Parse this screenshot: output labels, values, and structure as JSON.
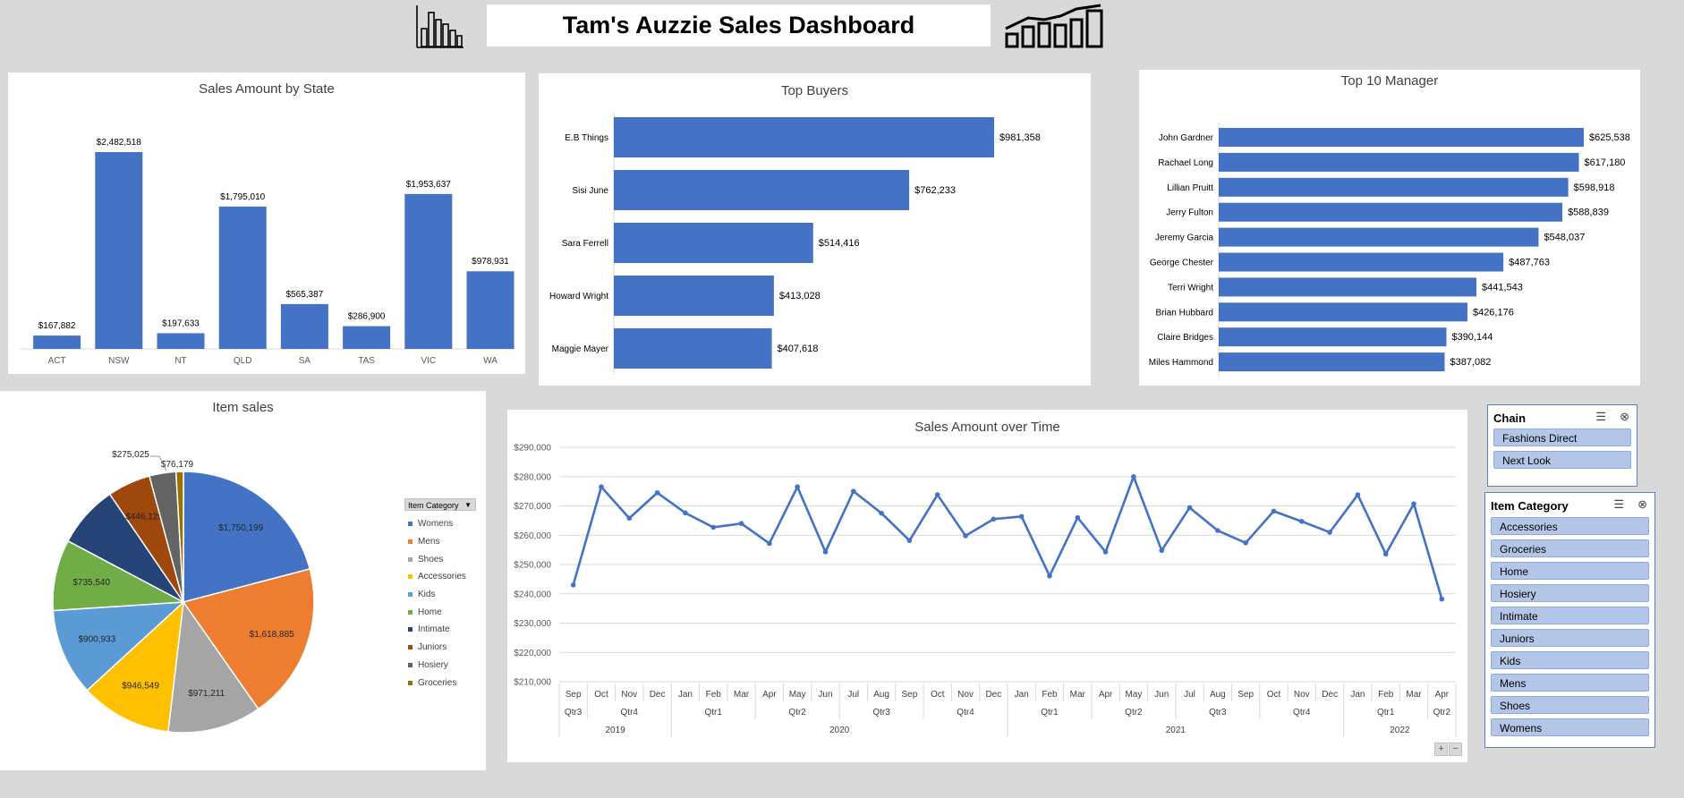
{
  "header": {
    "title": "Tam's Auzzie Sales Dashboard"
  },
  "chart_data": [
    {
      "id": "state",
      "type": "bar",
      "title": "Sales Amount by State",
      "categories": [
        "ACT",
        "NSW",
        "NT",
        "QLD",
        "SA",
        "TAS",
        "VIC",
        "WA"
      ],
      "values": [
        167882,
        2482518,
        197633,
        1795010,
        565387,
        286900,
        1953637,
        978931
      ],
      "labels": [
        "$167,882",
        "$2,482,518",
        "$197,633",
        "$1,795,010",
        "$565,387",
        "$286,900",
        "$1,953,637",
        "$978,931"
      ],
      "color": "#4472c4"
    },
    {
      "id": "buyers",
      "type": "bar",
      "orientation": "horizontal",
      "title": "Top Buyers",
      "categories": [
        "E.B Things",
        "Sisi June",
        "Sara Ferrell",
        "Howard Wright",
        "Maggie Mayer"
      ],
      "values": [
        981358,
        762233,
        514416,
        413028,
        407618
      ],
      "labels": [
        "$981,358",
        "$762,233",
        "$514,416",
        "$413,028",
        "$407,618"
      ],
      "color": "#4472c4"
    },
    {
      "id": "managers",
      "type": "bar",
      "orientation": "horizontal",
      "title": "Top 10 Manager",
      "categories": [
        "John Gardner",
        "Rachael Long",
        "Lillian Pruitt",
        "Jerry Fulton",
        "Jeremy Garcia",
        "George Chester",
        "Terri Wright",
        "Brian Hubbard",
        "Claire Bridges",
        "Miles Hammond"
      ],
      "values": [
        625538,
        617180,
        598918,
        588839,
        548037,
        487763,
        441543,
        426176,
        390144,
        387082
      ],
      "labels": [
        "$625,538",
        "$617,180",
        "$598,918",
        "$588,839",
        "$548,037",
        "$487,763",
        "$441,543",
        "$426,176",
        "$390,144",
        "$387,082"
      ],
      "color": "#4472c4"
    },
    {
      "id": "items",
      "type": "pie",
      "title": "Item sales",
      "legend_title": "Item Category",
      "legend_position": "right",
      "categories": [
        "Womens",
        "Mens",
        "Shoes",
        "Accessories",
        "Kids",
        "Home",
        "Intimate",
        "Juniors",
        "Hosiery",
        "Groceries"
      ],
      "values": [
        1750199,
        1618885,
        971211,
        946549,
        900933,
        735540,
        646000,
        446125,
        275025,
        76179
      ],
      "labels": [
        "$1,750,199",
        "$1,618,885",
        "$971,211",
        "$946,549",
        "$900,933",
        "$735,540",
        "",
        "$446,125",
        "$275,025",
        "$76,179"
      ],
      "colors": [
        "#4472c4",
        "#ed7d31",
        "#a5a5a5",
        "#ffc000",
        "#5b9bd5",
        "#70ad47",
        "#264478",
        "#9e480e",
        "#636363",
        "#997300"
      ]
    },
    {
      "id": "time",
      "type": "line",
      "title": "Sales Amount over Time",
      "x": [
        "Sep",
        "Oct",
        "Nov",
        "Dec",
        "Jan",
        "Feb",
        "Mar",
        "Apr",
        "May",
        "Jun",
        "Jul",
        "Aug",
        "Sep",
        "Oct",
        "Nov",
        "Dec",
        "Jan",
        "Feb",
        "Mar",
        "Apr",
        "May",
        "Jun",
        "Jul",
        "Aug",
        "Sep",
        "Oct",
        "Nov",
        "Dec",
        "Jan",
        "Feb",
        "Mar",
        "Apr"
      ],
      "values": [
        243000,
        276500,
        265800,
        274500,
        267600,
        262700,
        264000,
        257200,
        276500,
        254300,
        275000,
        267500,
        258200,
        273800,
        259800,
        265500,
        266400,
        246100,
        266000,
        254300,
        280000,
        254800,
        269400,
        261600,
        257400,
        268200,
        264700,
        261000,
        273800,
        253600,
        270700,
        238200
      ],
      "quarters": [
        {
          "label": "Qtr3",
          "n": 1
        },
        {
          "label": "Qtr4",
          "n": 3
        },
        {
          "label": "Qtr1",
          "n": 3
        },
        {
          "label": "Qtr2",
          "n": 3
        },
        {
          "label": "Qtr3",
          "n": 3
        },
        {
          "label": "Qtr4",
          "n": 3
        },
        {
          "label": "Qtr1",
          "n": 3
        },
        {
          "label": "Qtr2",
          "n": 3
        },
        {
          "label": "Qtr3",
          "n": 3
        },
        {
          "label": "Qtr4",
          "n": 3
        },
        {
          "label": "Qtr1",
          "n": 3
        },
        {
          "label": "Qtr2",
          "n": 1
        }
      ],
      "years": [
        {
          "label": "2019",
          "n": 4
        },
        {
          "label": "2020",
          "n": 12
        },
        {
          "label": "2021",
          "n": 12
        },
        {
          "label": "2022",
          "n": 4
        }
      ],
      "ylim": [
        210000,
        290000
      ],
      "yticks": [
        "$210,000",
        "$220,000",
        "$230,000",
        "$240,000",
        "$250,000",
        "$260,000",
        "$270,000",
        "$280,000",
        "$290,000"
      ],
      "grid": true,
      "color": "#4472c4"
    }
  ],
  "slicers": {
    "chain": {
      "title": "Chain",
      "items": [
        "Fashions Direct",
        "Next Look"
      ]
    },
    "category": {
      "title": "Item Category",
      "items": [
        "Accessories",
        "Groceries",
        "Home",
        "Hosiery",
        "Intimate",
        "Juniors",
        "Kids",
        "Mens",
        "Shoes",
        "Womens"
      ]
    }
  },
  "icons": {
    "left": "bar-chart-icon",
    "right": "bar-line-chart-icon",
    "multi_select": "multi-select-icon",
    "clear_filter": "clear-filter-icon"
  },
  "zoom_buttons": {
    "plus": "+",
    "minus": "−"
  }
}
